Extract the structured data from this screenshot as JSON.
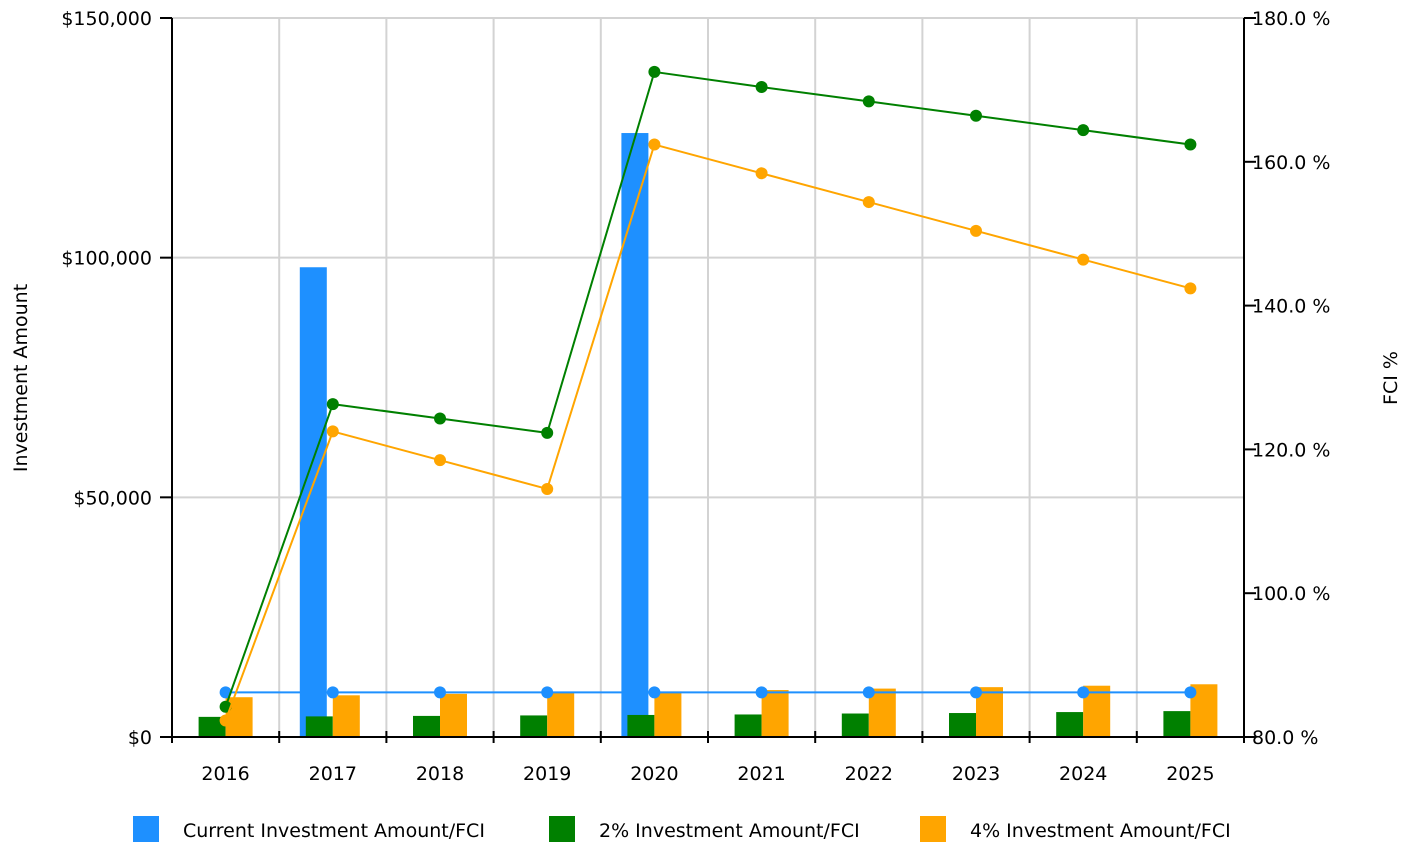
{
  "chart_data": {
    "type": "bar",
    "categories": [
      "2016",
      "2017",
      "2018",
      "2019",
      "2020",
      "2021",
      "2022",
      "2023",
      "2024",
      "2025"
    ],
    "y_left": {
      "label": "Investment  Amount",
      "min": 0,
      "max": 150000,
      "ticks": [
        0,
        50000,
        100000,
        150000
      ],
      "tick_labels": [
        "$0",
        "$50,000",
        "$100,000",
        "$150,000"
      ]
    },
    "y_right": {
      "label": "FCI %",
      "min": 80,
      "max": 180,
      "ticks": [
        80,
        100,
        120,
        140,
        160,
        180
      ],
      "tick_labels": [
        "80.0 %",
        "100.0 %",
        "120.0 %",
        "140.0 %",
        "160.0 %",
        "180.0 %"
      ]
    },
    "grid": "vertical-and-horizontal",
    "legend_position": "bottom",
    "series": [
      {
        "name": "Current Investment Amount/FCI",
        "color": "#1e90ff",
        "bar_values": [
          0,
          98000,
          0,
          0,
          126000,
          0,
          0,
          0,
          0,
          0
        ],
        "fci_values": [
          86.2,
          86.2,
          86.2,
          86.2,
          86.2,
          86.2,
          86.2,
          86.2,
          86.2,
          86.2
        ]
      },
      {
        "name": "2% Investment Amount/FCI",
        "color": "#008000",
        "bar_values": [
          4200,
          4300,
          4400,
          4500,
          4600,
          4700,
          4900,
          5000,
          5200,
          5400
        ],
        "fci_values": [
          84.2,
          126.3,
          124.3,
          122.3,
          172.5,
          170.4,
          168.4,
          166.4,
          164.4,
          162.4
        ]
      },
      {
        "name": "4% Investment Amount/FCI",
        "color": "#ffa500",
        "bar_values": [
          8300,
          8700,
          9000,
          9200,
          9500,
          9800,
          10100,
          10400,
          10700,
          11000
        ],
        "fci_values": [
          82.3,
          122.5,
          118.5,
          114.5,
          162.4,
          158.4,
          154.4,
          150.4,
          146.4,
          142.4
        ]
      }
    ]
  }
}
